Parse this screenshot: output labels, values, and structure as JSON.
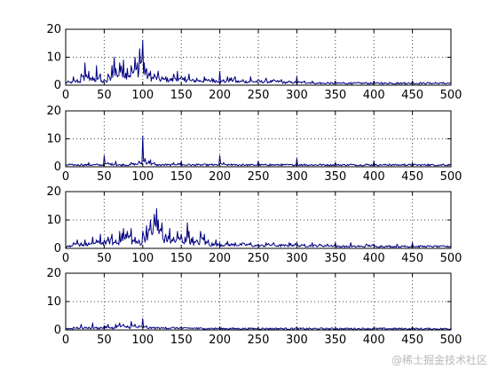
{
  "figure": {
    "watermark": "@稀土掘金技术社区"
  },
  "chart_data": [
    {
      "type": "line",
      "xlim": [
        0,
        500
      ],
      "ylim": [
        0,
        20
      ],
      "xticks": [
        0,
        50,
        100,
        150,
        200,
        250,
        300,
        350,
        400,
        450,
        500
      ],
      "yticks": [
        0,
        10,
        20
      ],
      "grid": true,
      "color": "#000080",
      "peaks": [
        [
          3,
          1.5
        ],
        [
          10,
          3
        ],
        [
          15,
          2
        ],
        [
          20,
          4
        ],
        [
          25,
          8
        ],
        [
          30,
          5
        ],
        [
          35,
          3
        ],
        [
          40,
          7
        ],
        [
          45,
          4
        ],
        [
          50,
          2
        ],
        [
          55,
          4
        ],
        [
          60,
          7
        ],
        [
          63,
          10
        ],
        [
          65,
          6
        ],
        [
          70,
          8
        ],
        [
          75,
          9
        ],
        [
          80,
          6
        ],
        [
          85,
          7
        ],
        [
          90,
          10
        ],
        [
          93,
          8
        ],
        [
          96,
          13
        ],
        [
          100,
          16
        ],
        [
          102,
          8
        ],
        [
          105,
          6
        ],
        [
          110,
          5
        ],
        [
          115,
          4
        ],
        [
          120,
          5
        ],
        [
          125,
          3
        ],
        [
          130,
          3
        ],
        [
          140,
          4
        ],
        [
          145,
          5
        ],
        [
          150,
          3
        ],
        [
          155,
          3
        ],
        [
          160,
          4
        ],
        [
          170,
          2.5
        ],
        [
          180,
          3
        ],
        [
          190,
          2.5
        ],
        [
          200,
          5
        ],
        [
          205,
          2
        ],
        [
          210,
          3
        ],
        [
          220,
          3
        ],
        [
          230,
          2
        ],
        [
          240,
          3
        ],
        [
          250,
          2
        ],
        [
          260,
          2.5
        ],
        [
          270,
          2
        ],
        [
          280,
          2
        ],
        [
          290,
          1.5
        ],
        [
          300,
          3
        ],
        [
          310,
          1.5
        ],
        [
          320,
          1.5
        ],
        [
          330,
          1
        ],
        [
          340,
          1
        ],
        [
          350,
          1.5
        ],
        [
          360,
          1
        ],
        [
          370,
          1
        ],
        [
          380,
          1
        ],
        [
          390,
          1
        ],
        [
          400,
          1.5
        ],
        [
          410,
          1
        ],
        [
          420,
          1
        ],
        [
          430,
          1
        ],
        [
          440,
          1
        ],
        [
          450,
          1.5
        ],
        [
          460,
          1
        ],
        [
          470,
          1
        ],
        [
          480,
          1
        ],
        [
          490,
          1
        ],
        [
          500,
          1
        ]
      ]
    },
    {
      "type": "line",
      "xlim": [
        0,
        500
      ],
      "ylim": [
        0,
        20
      ],
      "xticks": [
        0,
        50,
        100,
        150,
        200,
        250,
        300,
        350,
        400,
        450,
        500
      ],
      "yticks": [
        0,
        10,
        20
      ],
      "grid": true,
      "color": "#000080",
      "peaks": [
        [
          5,
          1
        ],
        [
          20,
          1
        ],
        [
          30,
          1.5
        ],
        [
          40,
          1
        ],
        [
          50,
          4
        ],
        [
          55,
          1.5
        ],
        [
          65,
          2
        ],
        [
          75,
          1
        ],
        [
          85,
          1.5
        ],
        [
          95,
          2
        ],
        [
          100,
          11
        ],
        [
          103,
          3
        ],
        [
          110,
          2.5
        ],
        [
          115,
          1.5
        ],
        [
          130,
          1
        ],
        [
          140,
          1.5
        ],
        [
          150,
          2
        ],
        [
          160,
          1
        ],
        [
          170,
          1
        ],
        [
          180,
          1
        ],
        [
          190,
          1
        ],
        [
          200,
          4
        ],
        [
          205,
          1.5
        ],
        [
          215,
          1
        ],
        [
          230,
          1
        ],
        [
          250,
          2
        ],
        [
          265,
          1
        ],
        [
          280,
          1
        ],
        [
          300,
          3
        ],
        [
          310,
          1
        ],
        [
          330,
          1
        ],
        [
          350,
          1.5
        ],
        [
          370,
          1
        ],
        [
          390,
          1
        ],
        [
          400,
          2
        ],
        [
          420,
          1
        ],
        [
          440,
          1
        ],
        [
          450,
          1.5
        ],
        [
          470,
          1
        ],
        [
          490,
          1
        ],
        [
          500,
          1
        ]
      ]
    },
    {
      "type": "line",
      "xlim": [
        0,
        500
      ],
      "ylim": [
        0,
        20
      ],
      "xticks": [
        0,
        50,
        100,
        150,
        200,
        250,
        300,
        350,
        400,
        450,
        500
      ],
      "yticks": [
        0,
        10,
        20
      ],
      "grid": true,
      "color": "#000080",
      "peaks": [
        [
          5,
          1
        ],
        [
          10,
          2
        ],
        [
          15,
          3
        ],
        [
          20,
          2
        ],
        [
          25,
          3
        ],
        [
          30,
          2
        ],
        [
          35,
          4
        ],
        [
          40,
          3
        ],
        [
          45,
          5
        ],
        [
          50,
          3
        ],
        [
          55,
          4
        ],
        [
          60,
          5
        ],
        [
          65,
          3
        ],
        [
          70,
          6
        ],
        [
          75,
          7
        ],
        [
          78,
          5
        ],
        [
          80,
          6
        ],
        [
          85,
          7
        ],
        [
          90,
          4
        ],
        [
          95,
          3
        ],
        [
          100,
          6
        ],
        [
          105,
          8
        ],
        [
          110,
          10
        ],
        [
          115,
          12
        ],
        [
          118,
          14
        ],
        [
          120,
          10
        ],
        [
          125,
          9
        ],
        [
          130,
          5
        ],
        [
          135,
          7
        ],
        [
          140,
          4
        ],
        [
          145,
          6
        ],
        [
          150,
          5
        ],
        [
          155,
          4
        ],
        [
          158,
          9
        ],
        [
          160,
          6
        ],
        [
          165,
          4
        ],
        [
          170,
          3
        ],
        [
          175,
          6
        ],
        [
          180,
          5
        ],
        [
          185,
          3
        ],
        [
          190,
          2
        ],
        [
          195,
          3
        ],
        [
          200,
          2
        ],
        [
          210,
          2.5
        ],
        [
          220,
          2
        ],
        [
          230,
          2
        ],
        [
          240,
          2
        ],
        [
          250,
          1.5
        ],
        [
          260,
          2
        ],
        [
          270,
          2
        ],
        [
          280,
          1.5
        ],
        [
          290,
          2
        ],
        [
          300,
          2
        ],
        [
          310,
          1.5
        ],
        [
          320,
          2
        ],
        [
          330,
          1.5
        ],
        [
          340,
          1.5
        ],
        [
          350,
          2
        ],
        [
          360,
          1
        ],
        [
          370,
          2
        ],
        [
          380,
          1
        ],
        [
          390,
          1.5
        ],
        [
          400,
          1.5
        ],
        [
          410,
          1
        ],
        [
          420,
          1
        ],
        [
          430,
          1.5
        ],
        [
          440,
          1
        ],
        [
          450,
          2
        ],
        [
          460,
          1
        ],
        [
          470,
          1
        ],
        [
          480,
          1
        ],
        [
          490,
          1
        ],
        [
          500,
          1
        ]
      ]
    },
    {
      "type": "line",
      "xlim": [
        0,
        500
      ],
      "ylim": [
        0,
        20
      ],
      "xticks": [
        0,
        50,
        100,
        150,
        200,
        250,
        300,
        350,
        400,
        450,
        500
      ],
      "yticks": [
        0,
        10,
        20
      ],
      "grid": true,
      "color": "#000080",
      "peaks": [
        [
          5,
          0.5
        ],
        [
          10,
          1
        ],
        [
          15,
          1
        ],
        [
          20,
          2
        ],
        [
          25,
          1
        ],
        [
          30,
          1
        ],
        [
          35,
          2.5
        ],
        [
          40,
          1
        ],
        [
          45,
          1
        ],
        [
          50,
          1.5
        ],
        [
          55,
          2
        ],
        [
          60,
          1
        ],
        [
          65,
          2
        ],
        [
          70,
          2.5
        ],
        [
          75,
          2
        ],
        [
          80,
          1.5
        ],
        [
          85,
          3
        ],
        [
          90,
          2
        ],
        [
          95,
          1.5
        ],
        [
          100,
          4
        ],
        [
          105,
          1.5
        ],
        [
          110,
          1
        ],
        [
          115,
          1
        ],
        [
          120,
          1
        ],
        [
          130,
          1
        ],
        [
          140,
          1
        ],
        [
          150,
          1
        ],
        [
          160,
          0.8
        ],
        [
          170,
          0.8
        ],
        [
          180,
          0.6
        ],
        [
          190,
          0.6
        ],
        [
          200,
          0.8
        ],
        [
          220,
          0.5
        ],
        [
          240,
          0.5
        ],
        [
          260,
          0.5
        ],
        [
          280,
          0.5
        ],
        [
          300,
          0.6
        ],
        [
          320,
          0.4
        ],
        [
          340,
          0.4
        ],
        [
          360,
          0.4
        ],
        [
          380,
          0.4
        ],
        [
          400,
          0.5
        ],
        [
          420,
          0.4
        ],
        [
          440,
          0.4
        ],
        [
          460,
          0.4
        ],
        [
          480,
          0.3
        ],
        [
          500,
          0.3
        ]
      ]
    }
  ]
}
